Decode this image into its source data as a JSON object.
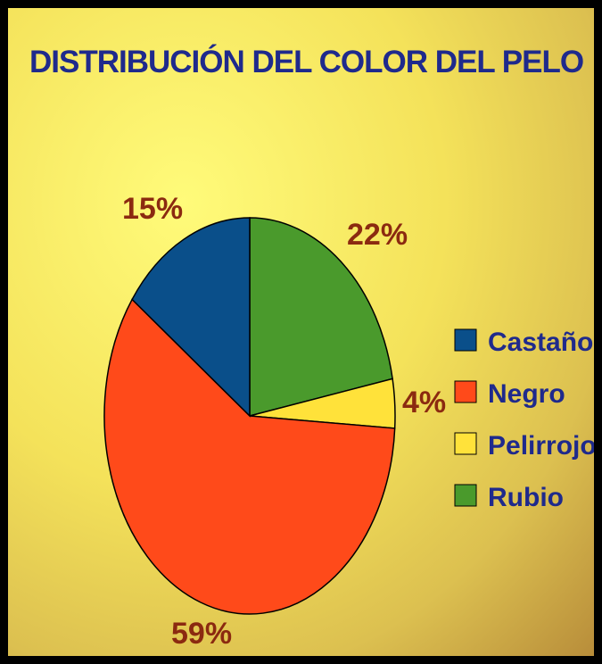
{
  "chart_data": {
    "type": "pie",
    "title": "DISTRIBUCIÓN DEL COLOR DEL PELO",
    "start_angle_deg": 0,
    "direction": "clockwise",
    "legend_position": "right",
    "slices": [
      {
        "label": "Rubio",
        "value": 22,
        "value_label": "22%",
        "color": "#4a9a2c"
      },
      {
        "label": "Pelirrojo",
        "value": 4,
        "value_label": "4%",
        "color": "#ffe23a"
      },
      {
        "label": "Negro",
        "value": 59,
        "value_label": "59%",
        "color": "#ff4a1a"
      },
      {
        "label": "Castaño",
        "value": 15,
        "value_label": "15%",
        "color": "#0a4f8a"
      }
    ],
    "legend": [
      {
        "label": "Castaño",
        "color": "#0a4f8a"
      },
      {
        "label": "Negro",
        "color": "#ff4a1a"
      },
      {
        "label": "Pelirrojo",
        "color": "#ffe23a"
      },
      {
        "label": "Rubio",
        "color": "#4a9a2c"
      }
    ]
  }
}
